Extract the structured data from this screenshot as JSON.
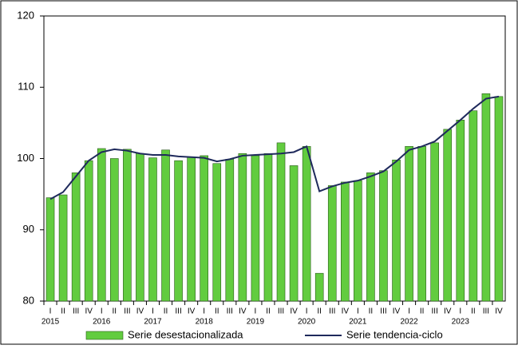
{
  "chart_data": {
    "type": "bar-line",
    "categories": [
      "I",
      "II",
      "III",
      "IV",
      "I",
      "II",
      "III",
      "IV",
      "I",
      "II",
      "III",
      "IV",
      "I",
      "II",
      "III",
      "IV",
      "I",
      "II",
      "III",
      "IV",
      "I",
      "II",
      "III",
      "IV",
      "I",
      "II",
      "III",
      "IV",
      "I",
      "II",
      "III",
      "IV",
      "I",
      "II",
      "III",
      "IV"
    ],
    "years": [
      "2015",
      "2016",
      "2017",
      "2018",
      "2019",
      "2020",
      "2021",
      "2022",
      "2023"
    ],
    "series": [
      {
        "name": "Serie desestacionalizada",
        "type": "bar",
        "color": "#62cc3f",
        "values": [
          94.5,
          94.9,
          98.0,
          99.7,
          101.4,
          100.0,
          101.3,
          100.7,
          100.1,
          101.2,
          99.7,
          100.2,
          100.4,
          99.3,
          99.9,
          100.7,
          100.4,
          100.7,
          102.2,
          99.0,
          101.7,
          83.9,
          96.2,
          96.7,
          96.9,
          98.0,
          98.3,
          99.8,
          101.7,
          101.7,
          102.2,
          104.1,
          105.4,
          106.7,
          109.1,
          108.7
        ]
      },
      {
        "name": "Serie tendencia-ciclo",
        "type": "line",
        "color": "#1f2a5c",
        "values": [
          94.3,
          95.3,
          97.5,
          99.7,
          100.9,
          101.3,
          101.1,
          100.7,
          100.5,
          100.5,
          100.3,
          100.2,
          100.1,
          99.6,
          99.9,
          100.4,
          100.5,
          100.6,
          100.7,
          100.9,
          101.7,
          95.4,
          96.1,
          96.6,
          96.9,
          97.5,
          98.2,
          99.6,
          101.2,
          101.7,
          102.4,
          103.9,
          105.4,
          107.0,
          108.4,
          108.7
        ]
      }
    ],
    "ylim": [
      80,
      120
    ],
    "yticks": [
      80,
      90,
      100,
      110,
      120
    ]
  }
}
